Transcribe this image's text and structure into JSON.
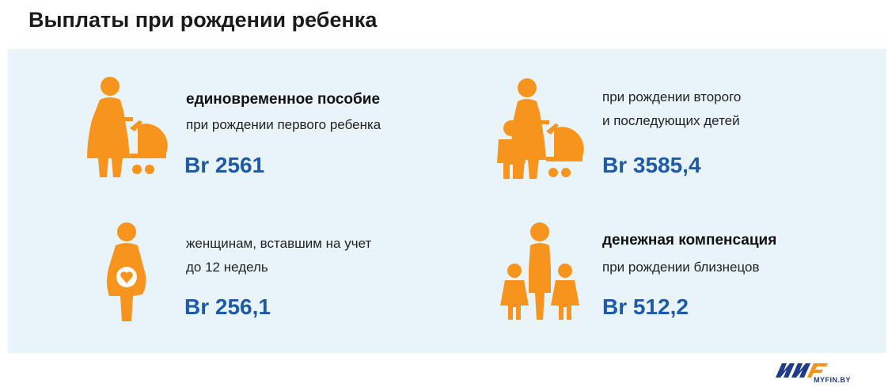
{
  "title": "Выплаты при рождении ребенка",
  "colors": {
    "accent": "#f7941d",
    "amount": "#1f5aa6",
    "panel": "#e9f4fa"
  },
  "cards": [
    {
      "icon": "mother-with-stroller-icon",
      "line1": "единовременное пособие",
      "line2": "при рождении первого ребенка",
      "amount": "Br 2561"
    },
    {
      "icon": "mother-with-child-and-stroller-icon",
      "line1": "при рождении второго",
      "line2": "и последующих детей",
      "amount": "Br 3585,4"
    },
    {
      "icon": "pregnant-woman-icon",
      "line1": "женщинам, вставшим на учет",
      "line2": "до 12 недель",
      "amount": "Br 256,1"
    },
    {
      "icon": "mother-with-twins-icon",
      "line1": "денежная компенсация",
      "line2": "при рождении близнецов",
      "amount": "Br 512,2"
    }
  ],
  "logo": {
    "text": "MYFIN.BY"
  }
}
